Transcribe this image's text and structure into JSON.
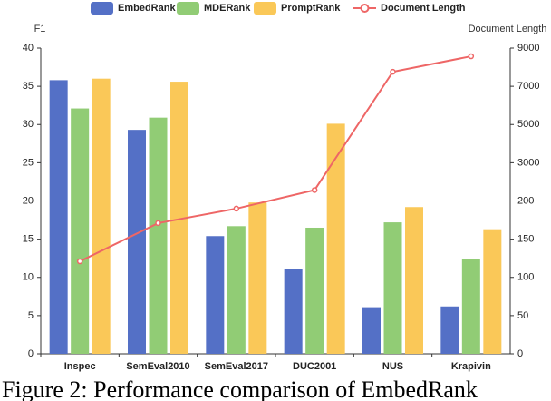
{
  "chart_data": {
    "type": "bar",
    "y_label": "F1",
    "y2_label": "Document Length",
    "categories": [
      "Inspec",
      "SemEval2010",
      "SemEval2017",
      "DUC2001",
      "NUS",
      "Krapivin"
    ],
    "series": [
      {
        "name": "EmbedRank",
        "type": "bar",
        "color": "#5470c6",
        "values": [
          35.8,
          29.3,
          15.4,
          11.1,
          6.1,
          6.2
        ]
      },
      {
        "name": "MDERank",
        "type": "bar",
        "color": "#91cc75",
        "values": [
          32.1,
          30.9,
          16.7,
          16.5,
          17.2,
          12.4
        ]
      },
      {
        "name": "PromptRank",
        "type": "bar",
        "color": "#fac858",
        "values": [
          36.0,
          35.6,
          19.8,
          30.1,
          19.2,
          16.3
        ]
      },
      {
        "name": "Document Length",
        "type": "line",
        "axis": "y2",
        "color": "#ee6666",
        "values": [
          121,
          171,
          190,
          1000,
          7760,
          8570
        ]
      }
    ],
    "ylim": [
      0,
      40
    ],
    "yticks": [
      0,
      5,
      10,
      15,
      20,
      25,
      30,
      35,
      40
    ],
    "y2lim": [
      0,
      9000
    ],
    "y2ticks": [
      0,
      50,
      100,
      150,
      200,
      3000,
      5000,
      7000,
      9000
    ],
    "y2scale": "piecewise",
    "grid": false,
    "legend": "top",
    "caption": "Figure 2:  Performance comparison of EmbedRank"
  }
}
